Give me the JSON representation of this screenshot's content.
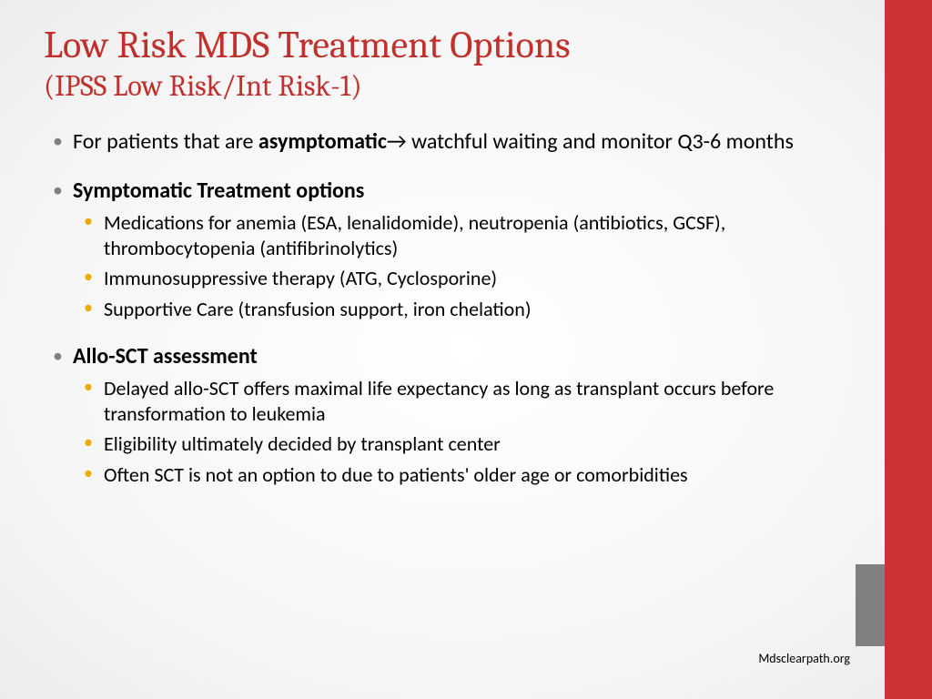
{
  "colors": {
    "title": "#c0302c",
    "bar_red": "#cc3333",
    "bar_gray": "#808080",
    "bullet_gray": "#808080",
    "bullet_orange": "#f0ab00",
    "text": "#000000"
  },
  "title": "Low Risk MDS Treatment Options",
  "subtitle": "(IPSS Low Risk/Int Risk-1)",
  "bullet1": {
    "pre": "For patients that are ",
    "bold": "asymptomatic",
    "arrow": "→",
    "post": " watchful waiting and monitor Q3-6 months"
  },
  "bullet2": {
    "heading": "Symptomatic Treatment options",
    "items": [
      "Medications for anemia (ESA, lenalidomide), neutropenia (antibiotics, GCSF), thrombocytopenia (antifibrinolytics)",
      "Immunosuppressive therapy (ATG, Cyclosporine)",
      "Supportive Care (transfusion support, iron chelation)"
    ]
  },
  "bullet3": {
    "heading": "Allo-SCT assessment",
    "items": [
      "Delayed allo-SCT offers maximal life expectancy as long as transplant occurs before transformation to leukemia",
      "Eligibility ultimately decided by transplant center",
      "Often SCT is not an option to due to patients' older age or comorbidities"
    ]
  },
  "footnote": "Mdsclearpath.org"
}
